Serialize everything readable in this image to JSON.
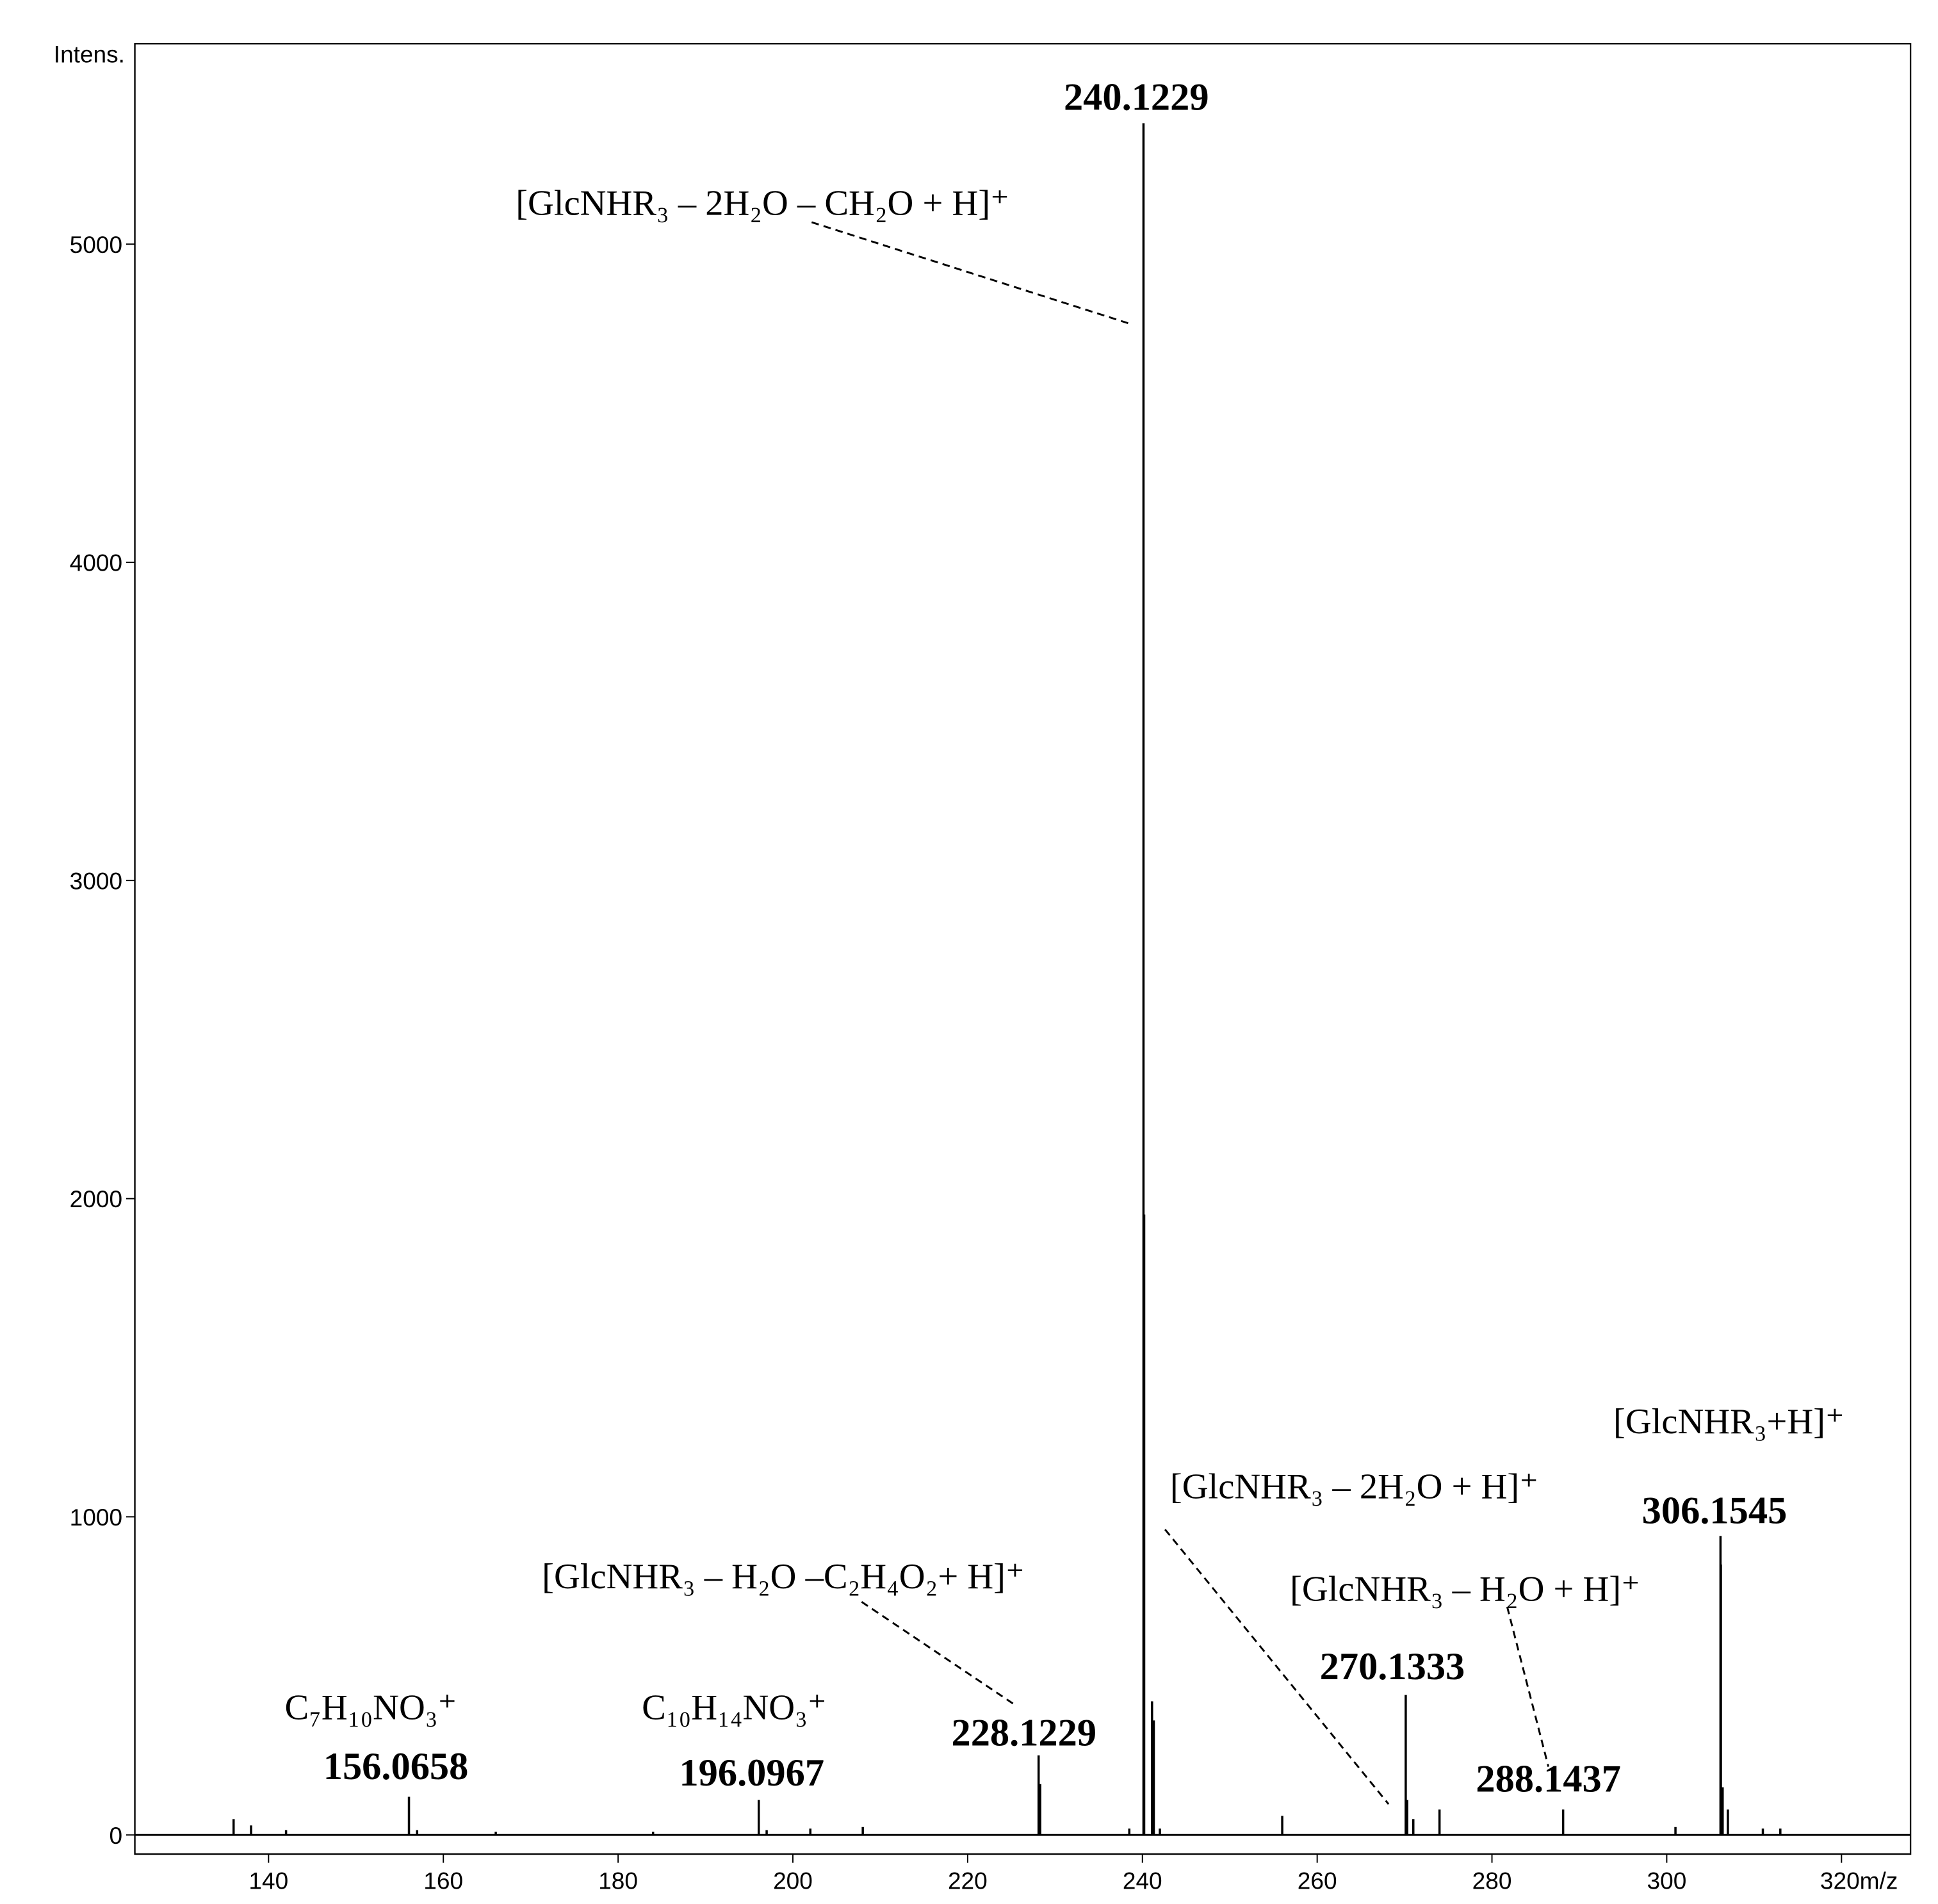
{
  "chart_data": {
    "type": "spectrum",
    "y_label": "Intens.",
    "x": [
      136.0,
      138.0,
      142.0,
      156.0658,
      157.0,
      166.0,
      184.0,
      196.0967,
      197.0,
      202.0,
      208.0,
      228.1229,
      228.3,
      238.5,
      240.1229,
      240.2,
      241.1,
      241.3,
      242.0,
      256.0,
      270.1333,
      270.3,
      271.0,
      274.0,
      288.1437,
      301.0,
      306.1545,
      306.2,
      306.4,
      307.0,
      311.0,
      313.0
    ],
    "values": [
      50,
      30,
      15,
      120,
      15,
      10,
      10,
      110,
      15,
      20,
      25,
      250,
      160,
      20,
      5380,
      1950,
      420,
      360,
      20,
      60,
      440,
      110,
      50,
      80,
      80,
      25,
      940,
      850,
      150,
      80,
      20,
      20
    ],
    "color": "#000000",
    "xlim": [
      124.7,
      327.9
    ],
    "xticks": [
      140,
      160,
      180,
      200,
      220,
      240,
      260,
      280,
      300,
      {
        "value": 320,
        "label": "320m/z"
      }
    ],
    "ylim": [
      -60,
      5630
    ],
    "yticks": [
      0,
      1000,
      2000,
      3000,
      4000,
      5000
    ],
    "peak_labels": [
      240.1229,
      156.0658,
      196.0967,
      228.1229,
      270.1333,
      288.1437,
      306.1545
    ],
    "annotations": [
      "[GlcNHR₃ – 2H₂O – CH₂O + H]⁺",
      "[GlcNHR₃ – H₂O –C₂H₄O₂+ H]⁺",
      "[GlcNHR₃ – 2H₂O + H]⁺",
      "[GlcNHR₃ – H₂O + H]⁺",
      "[GlcNHR₃+H]⁺",
      "C₇H₁₀NO₃⁺",
      "C₁₀H₁₄NO₃⁺"
    ]
  }
}
